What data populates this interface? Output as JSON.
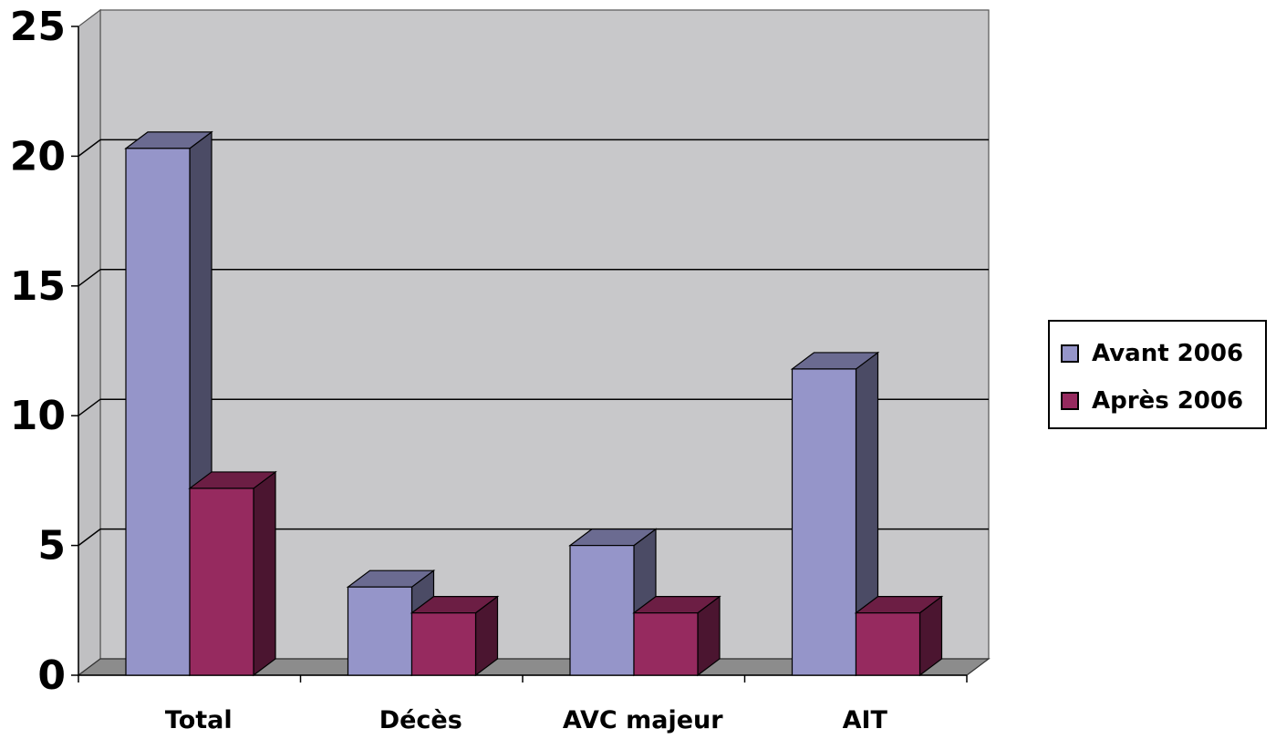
{
  "chart_data": {
    "type": "bar",
    "style": "3d-clustered-column",
    "categories": [
      "Total",
      "Décès",
      "AVC majeur",
      "AIT"
    ],
    "series": [
      {
        "name": "Avant 2006",
        "values": [
          20.3,
          3.4,
          5.0,
          11.8
        ],
        "color": "#9595C9"
      },
      {
        "name": "Après 2006",
        "values": [
          7.2,
          2.4,
          2.4,
          2.4
        ],
        "color": "#962A5F"
      }
    ],
    "ylim": [
      0,
      25
    ],
    "yticks": [
      0,
      5,
      10,
      15,
      20,
      25
    ],
    "grid": true,
    "legend_position": "right",
    "wall_color": "#C8C8CA",
    "floor_color": "#8C8C8C"
  }
}
